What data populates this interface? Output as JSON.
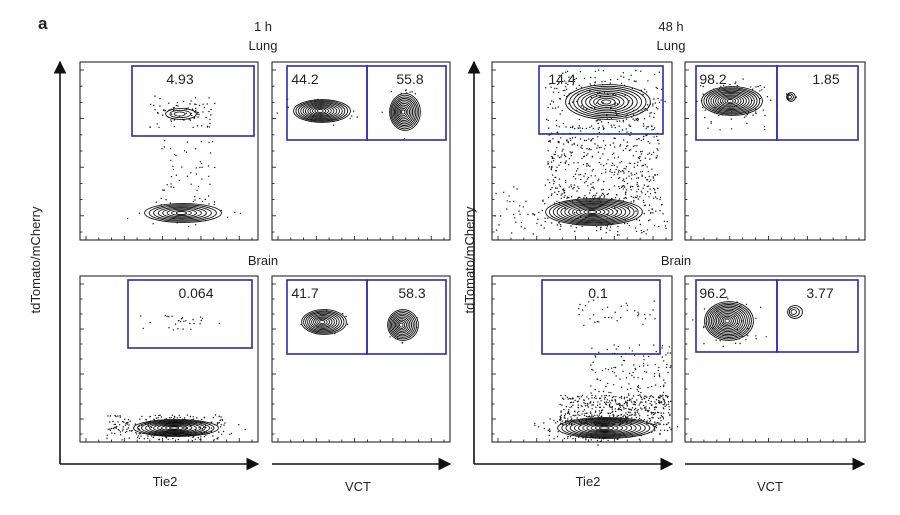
{
  "panel_letter": "a",
  "column_headers": [
    {
      "time": "1 h",
      "organ": "Lung"
    },
    {
      "time": "48 h",
      "organ": "Lung"
    }
  ],
  "row_labels": [
    "Brain",
    "Brain"
  ],
  "axis_labels": {
    "y": "tdTomato/mCherry",
    "x_left": "Tie2",
    "x_right": "VCT"
  },
  "colors": {
    "gate": "#2b2bb0",
    "plot": "#111111"
  },
  "chart_data": [
    {
      "type": "scatter",
      "time": "1 h",
      "organ": "Lung",
      "x_axis": "Tie2",
      "y_axis": "tdTomato/mCherry",
      "gates": [
        {
          "label": "4.93",
          "value": 4.93
        }
      ]
    },
    {
      "type": "scatter",
      "time": "1 h",
      "organ": "Lung",
      "x_axis": "VCT",
      "gates": [
        {
          "label": "44.2",
          "value": 44.2
        },
        {
          "label": "55.8",
          "value": 55.8
        }
      ]
    },
    {
      "type": "scatter",
      "time": "48 h",
      "organ": "Lung",
      "x_axis": "Tie2",
      "y_axis": "tdTomato/mCherry",
      "gates": [
        {
          "label": "14.4",
          "value": 14.4
        }
      ]
    },
    {
      "type": "scatter",
      "time": "48 h",
      "organ": "Lung",
      "x_axis": "VCT",
      "gates": [
        {
          "label": "98.2",
          "value": 98.2
        },
        {
          "label": "1.85",
          "value": 1.85
        }
      ]
    },
    {
      "type": "scatter",
      "time": "1 h",
      "organ": "Brain",
      "x_axis": "Tie2",
      "y_axis": "tdTomato/mCherry",
      "gates": [
        {
          "label": "0.064",
          "value": 0.064
        }
      ]
    },
    {
      "type": "scatter",
      "time": "1 h",
      "organ": "Brain",
      "x_axis": "VCT",
      "gates": [
        {
          "label": "41.7",
          "value": 41.7
        },
        {
          "label": "58.3",
          "value": 58.3
        }
      ]
    },
    {
      "type": "scatter",
      "time": "48 h",
      "organ": "Brain",
      "x_axis": "Tie2",
      "y_axis": "tdTomato/mCherry",
      "gates": [
        {
          "label": "0.1",
          "value": 0.1
        }
      ]
    },
    {
      "type": "scatter",
      "time": "48 h",
      "organ": "Brain",
      "x_axis": "VCT",
      "gates": [
        {
          "label": "96.2",
          "value": 96.2
        },
        {
          "label": "3.77",
          "value": 3.77
        }
      ]
    }
  ]
}
